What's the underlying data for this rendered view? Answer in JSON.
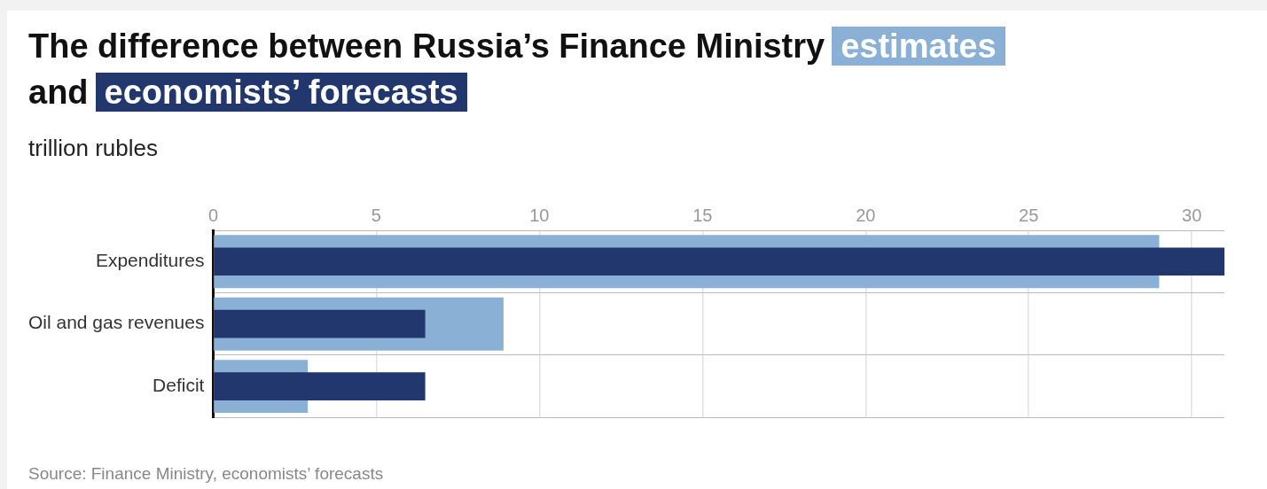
{
  "chart_data": {
    "type": "bar",
    "orientation": "horizontal",
    "title": "The difference between Russia’s Finance Ministry",
    "subtitle": "trillion rubles",
    "annotations": [
      "and",
      "Source: Finance Ministry, economists’ forecasts"
    ],
    "categories": [
      "Expenditures",
      "Oil and gas revenues",
      "Deficit"
    ],
    "series": [
      {
        "name": "estimates",
        "color": "#8ab0d6",
        "values": [
          29,
          8.9,
          2.9
        ]
      },
      {
        "name": "economists’ forecasts",
        "color": "#22376e",
        "values": [
          31,
          6.5,
          6.5
        ]
      }
    ],
    "xlim": [
      0,
      31
    ],
    "xticks": [
      0,
      5,
      10,
      15,
      20,
      25,
      30
    ],
    "grid": true,
    "legend": "top"
  }
}
